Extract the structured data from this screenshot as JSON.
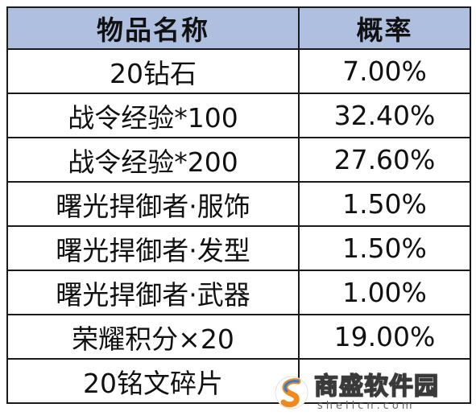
{
  "table": {
    "headers": {
      "name": "物品名称",
      "rate": "概率"
    },
    "rows": [
      {
        "name": "20钻石",
        "rate": "7.00%"
      },
      {
        "name": "战令经验*100",
        "rate": "32.40%"
      },
      {
        "name": "战令经验*200",
        "rate": "27.60%"
      },
      {
        "name": "曙光捍御者·服饰",
        "rate": "1.50%"
      },
      {
        "name": "曙光捍御者·发型",
        "rate": "1.50%"
      },
      {
        "name": "曙光捍御者·武器",
        "rate": "1.00%"
      },
      {
        "name": "荣耀积分×20",
        "rate": "19.00%"
      },
      {
        "name": "20铭文碎片",
        "rate": ""
      }
    ]
  },
  "watermark": {
    "cn": "商盛软件园",
    "en": "shellcn.com"
  },
  "colors": {
    "header_bg": "#aebfe0",
    "border": "#1a1a1a",
    "logo_orange": "#f08a1c",
    "logo_blue": "#2a7fd6"
  }
}
